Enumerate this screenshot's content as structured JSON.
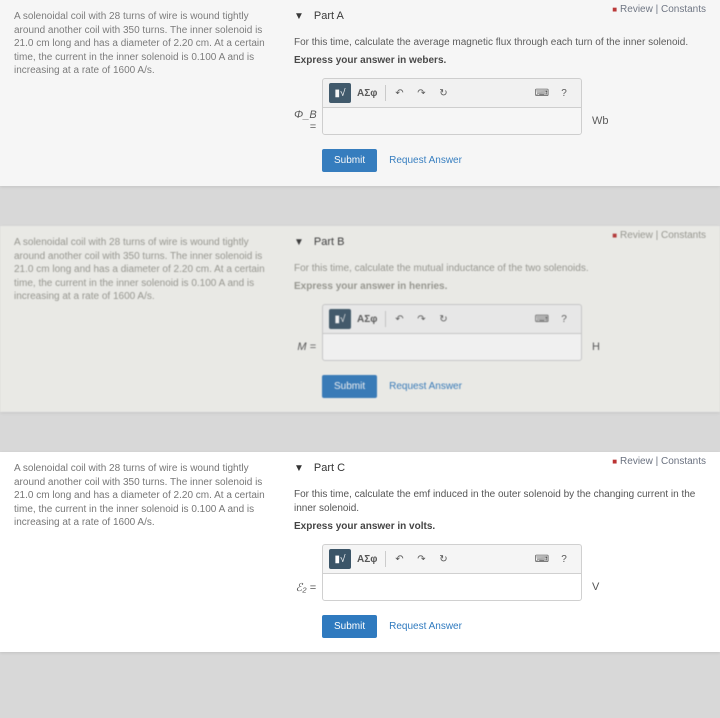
{
  "review_label": "Review | Constants",
  "problem_text": "A solenoidal coil with 28 turns of wire is wound tightly around another coil with 350 turns. The inner solenoid is 21.0 cm long and has a diameter of 2.20 cm. At a certain time, the current in the inner solenoid is 0.100 A and is increasing at a rate of 1600 A/s.",
  "toolbar": {
    "templates_icon": "▮√",
    "greek": "ΑΣφ",
    "undo": "↶",
    "redo": "↷",
    "reset": "↻",
    "keyboard": "⌨",
    "help": "?"
  },
  "submit_label": "Submit",
  "request_label": "Request Answer",
  "parts": {
    "a": {
      "title": "Part A",
      "instr": "For this time, calculate the average magnetic flux through each turn of the inner solenoid.",
      "express": "Express your answer in webers.",
      "var": "Φ_B =",
      "unit": "Wb"
    },
    "b": {
      "title": "Part B",
      "instr": "For this time, calculate the mutual inductance of the two solenoids.",
      "express": "Express your answer in henries.",
      "var": "M =",
      "unit": "H"
    },
    "c": {
      "title": "Part C",
      "instr": "For this time, calculate the emf induced in the outer solenoid by the changing current in the inner solenoid.",
      "express": "Express your answer in volts.",
      "var": "ℰ₂ =",
      "unit": "V"
    }
  }
}
